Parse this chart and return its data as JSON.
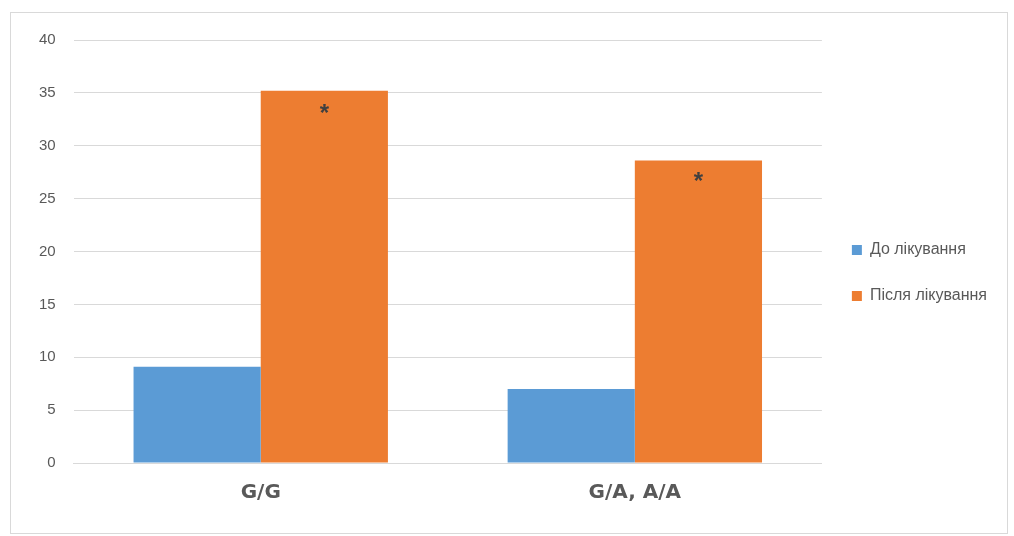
{
  "chart_data": {
    "type": "bar",
    "categories": [
      "G/G",
      "G/A, A/A"
    ],
    "series": [
      {
        "name": "До лікування",
        "color": "#5b9bd5",
        "values": [
          9.1,
          7.0
        ]
      },
      {
        "name": "Після лікування",
        "color": "#ed7d31",
        "values": [
          35.2,
          28.6
        ]
      }
    ],
    "ylim": [
      0,
      40
    ],
    "yticks": [
      0,
      5,
      10,
      15,
      20,
      25,
      30,
      35,
      40
    ],
    "grid": "y",
    "legend": "right",
    "annotations": [
      {
        "text": "*",
        "x": "G/G",
        "y": 33
      },
      {
        "text": "*",
        "x": "G/A, A/A",
        "y": 26.5
      }
    ]
  }
}
